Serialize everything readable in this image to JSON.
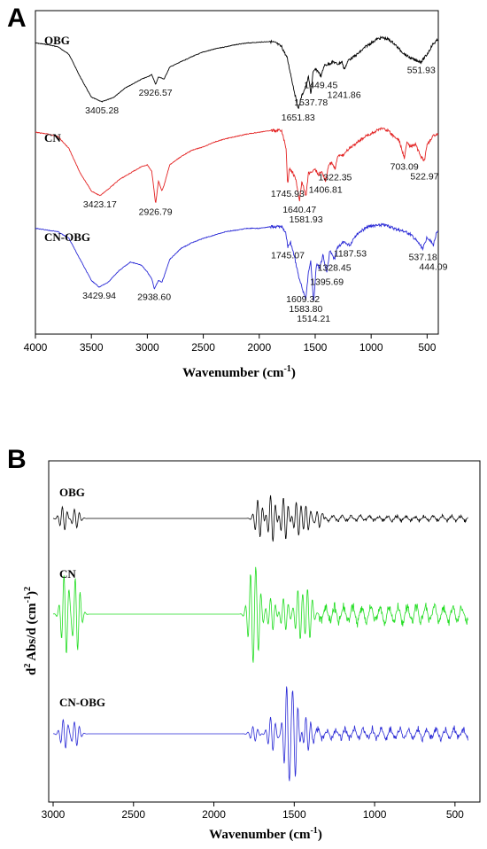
{
  "chart_data": [
    {
      "panel": "A",
      "type": "line",
      "xlabel": "Wavenumber (cm-1)",
      "xlabel_main": "Wavenumber (cm",
      "xlabel_sup": "-1",
      "xlabel_end": ")",
      "ylabel": "",
      "xlim": [
        4000,
        400
      ],
      "xticks": [
        4000,
        3500,
        3000,
        2500,
        2000,
        1500,
        1000,
        500
      ],
      "series": [
        {
          "name": "OBG",
          "color": "#000000",
          "points": [
            [
              4000,
              0.1
            ],
            [
              3900,
              0.12
            ],
            [
              3800,
              0.15
            ],
            [
              3700,
              0.25
            ],
            [
              3600,
              0.55
            ],
            [
              3500,
              0.82
            ],
            [
              3405,
              0.88
            ],
            [
              3300,
              0.82
            ],
            [
              3200,
              0.7
            ],
            [
              3100,
              0.62
            ],
            [
              3050,
              0.58
            ],
            [
              3000,
              0.55
            ],
            [
              2960,
              0.52
            ],
            [
              2926,
              0.65
            ],
            [
              2900,
              0.55
            ],
            [
              2850,
              0.58
            ],
            [
              2800,
              0.42
            ],
            [
              2700,
              0.35
            ],
            [
              2600,
              0.28
            ],
            [
              2500,
              0.22
            ],
            [
              2400,
              0.18
            ],
            [
              2300,
              0.15
            ],
            [
              2200,
              0.12
            ],
            [
              2100,
              0.1
            ],
            [
              2000,
              0.09
            ],
            [
              1900,
              0.08
            ],
            [
              1850,
              0.1
            ],
            [
              1800,
              0.15
            ],
            [
              1750,
              0.3
            ],
            [
              1700,
              0.65
            ],
            [
              1652,
              0.98
            ],
            [
              1620,
              0.8
            ],
            [
              1590,
              0.7
            ],
            [
              1560,
              0.55
            ],
            [
              1538,
              0.78
            ],
            [
              1520,
              0.5
            ],
            [
              1500,
              0.45
            ],
            [
              1470,
              0.48
            ],
            [
              1449,
              0.55
            ],
            [
              1420,
              0.4
            ],
            [
              1380,
              0.38
            ],
            [
              1340,
              0.35
            ],
            [
              1300,
              0.38
            ],
            [
              1260,
              0.35
            ],
            [
              1242,
              0.45
            ],
            [
              1200,
              0.32
            ],
            [
              1150,
              0.28
            ],
            [
              1100,
              0.22
            ],
            [
              1050,
              0.15
            ],
            [
              1000,
              0.1
            ],
            [
              950,
              0.05
            ],
            [
              900,
              0.03
            ],
            [
              850,
              0.05
            ],
            [
              800,
              0.1
            ],
            [
              750,
              0.18
            ],
            [
              700,
              0.25
            ],
            [
              650,
              0.3
            ],
            [
              600,
              0.33
            ],
            [
              552,
              0.35
            ],
            [
              500,
              0.25
            ],
            [
              450,
              0.12
            ],
            [
              400,
              0.05
            ]
          ],
          "peaks": [
            {
              "label": "3405.28",
              "x": 3405.28
            },
            {
              "label": "2926.57",
              "x": 2926.57
            },
            {
              "label": "1651.83",
              "x": 1651.83
            },
            {
              "label": "1537.78",
              "x": 1537.78
            },
            {
              "label": "1449.45",
              "x": 1449.45
            },
            {
              "label": "1241.86",
              "x": 1241.86
            },
            {
              "label": "551.93",
              "x": 551.93
            }
          ]
        },
        {
          "name": "CN",
          "color": "#e32222",
          "points": [
            [
              4000,
              0.1
            ],
            [
              3900,
              0.12
            ],
            [
              3800,
              0.15
            ],
            [
              3700,
              0.3
            ],
            [
              3600,
              0.6
            ],
            [
              3500,
              0.82
            ],
            [
              3423,
              0.88
            ],
            [
              3350,
              0.8
            ],
            [
              3250,
              0.68
            ],
            [
              3150,
              0.6
            ],
            [
              3050,
              0.52
            ],
            [
              3000,
              0.5
            ],
            [
              2960,
              0.58
            ],
            [
              2926,
              0.98
            ],
            [
              2900,
              0.7
            ],
            [
              2870,
              0.82
            ],
            [
              2850,
              0.75
            ],
            [
              2800,
              0.5
            ],
            [
              2700,
              0.4
            ],
            [
              2600,
              0.32
            ],
            [
              2500,
              0.28
            ],
            [
              2400,
              0.22
            ],
            [
              2300,
              0.18
            ],
            [
              2200,
              0.15
            ],
            [
              2100,
              0.12
            ],
            [
              2000,
              0.1
            ],
            [
              1900,
              0.08
            ],
            [
              1800,
              0.08
            ],
            [
              1760,
              0.3
            ],
            [
              1746,
              0.75
            ],
            [
              1730,
              0.55
            ],
            [
              1700,
              0.6
            ],
            [
              1670,
              0.7
            ],
            [
              1640,
              0.95
            ],
            [
              1620,
              0.7
            ],
            [
              1582,
              0.88
            ],
            [
              1560,
              0.6
            ],
            [
              1520,
              0.58
            ],
            [
              1500,
              0.55
            ],
            [
              1470,
              0.62
            ],
            [
              1440,
              0.58
            ],
            [
              1407,
              0.7
            ],
            [
              1380,
              0.5
            ],
            [
              1350,
              0.48
            ],
            [
              1322,
              0.55
            ],
            [
              1300,
              0.4
            ],
            [
              1250,
              0.38
            ],
            [
              1200,
              0.3
            ],
            [
              1150,
              0.25
            ],
            [
              1100,
              0.2
            ],
            [
              1050,
              0.15
            ],
            [
              1000,
              0.12
            ],
            [
              950,
              0.08
            ],
            [
              900,
              0.05
            ],
            [
              850,
              0.08
            ],
            [
              800,
              0.15
            ],
            [
              750,
              0.2
            ],
            [
              703,
              0.42
            ],
            [
              680,
              0.22
            ],
            [
              650,
              0.28
            ],
            [
              600,
              0.25
            ],
            [
              560,
              0.4
            ],
            [
              523,
              0.45
            ],
            [
              500,
              0.25
            ],
            [
              450,
              0.15
            ],
            [
              400,
              0.12
            ]
          ],
          "peaks": [
            {
              "label": "3423.17",
              "x": 3423.17
            },
            {
              "label": "2926.79",
              "x": 2926.79
            },
            {
              "label": "1745.93",
              "x": 1745.93
            },
            {
              "label": "1640.47",
              "x": 1640.47
            },
            {
              "label": "1581.93",
              "x": 1581.93
            },
            {
              "label": "1406.81",
              "x": 1406.81
            },
            {
              "label": "1322.35",
              "x": 1322.35
            },
            {
              "label": "703.09",
              "x": 703.09
            },
            {
              "label": "522.97",
              "x": 522.97
            }
          ]
        },
        {
          "name": "CN-OBG",
          "color": "#2a2ad6",
          "points": [
            [
              4000,
              0.08
            ],
            [
              3900,
              0.1
            ],
            [
              3800,
              0.12
            ],
            [
              3700,
              0.2
            ],
            [
              3600,
              0.45
            ],
            [
              3500,
              0.7
            ],
            [
              3430,
              0.78
            ],
            [
              3350,
              0.72
            ],
            [
              3250,
              0.58
            ],
            [
              3150,
              0.48
            ],
            [
              3050,
              0.52
            ],
            [
              3000,
              0.6
            ],
            [
              2960,
              0.68
            ],
            [
              2938,
              0.8
            ],
            [
              2900,
              0.7
            ],
            [
              2870,
              0.72
            ],
            [
              2850,
              0.65
            ],
            [
              2800,
              0.45
            ],
            [
              2700,
              0.32
            ],
            [
              2600,
              0.25
            ],
            [
              2500,
              0.2
            ],
            [
              2400,
              0.16
            ],
            [
              2300,
              0.12
            ],
            [
              2200,
              0.1
            ],
            [
              2100,
              0.08
            ],
            [
              2000,
              0.08
            ],
            [
              1900,
              0.06
            ],
            [
              1800,
              0.06
            ],
            [
              1760,
              0.15
            ],
            [
              1745,
              0.3
            ],
            [
              1720,
              0.25
            ],
            [
              1680,
              0.45
            ],
            [
              1640,
              0.7
            ],
            [
              1609,
              0.82
            ],
            [
              1584,
              0.92
            ],
            [
              1560,
              0.6
            ],
            [
              1540,
              0.45
            ],
            [
              1514,
              0.98
            ],
            [
              1490,
              0.5
            ],
            [
              1460,
              0.55
            ],
            [
              1430,
              0.4
            ],
            [
              1396,
              0.62
            ],
            [
              1370,
              0.35
            ],
            [
              1328,
              0.45
            ],
            [
              1300,
              0.3
            ],
            [
              1250,
              0.25
            ],
            [
              1188,
              0.28
            ],
            [
              1150,
              0.18
            ],
            [
              1100,
              0.12
            ],
            [
              1050,
              0.08
            ],
            [
              1000,
              0.05
            ],
            [
              950,
              0.05
            ],
            [
              900,
              0.04
            ],
            [
              850,
              0.05
            ],
            [
              800,
              0.08
            ],
            [
              750,
              0.1
            ],
            [
              700,
              0.12
            ],
            [
              650,
              0.15
            ],
            [
              600,
              0.22
            ],
            [
              537,
              0.32
            ],
            [
              500,
              0.18
            ],
            [
              444,
              0.28
            ],
            [
              420,
              0.15
            ],
            [
              400,
              0.12
            ]
          ],
          "peaks": [
            {
              "label": "3429.94",
              "x": 3429.94
            },
            {
              "label": "2938.60",
              "x": 2938.6
            },
            {
              "label": "1745.07",
              "x": 1745.07
            },
            {
              "label": "1609.32",
              "x": 1609.32
            },
            {
              "label": "1583.80",
              "x": 1583.8
            },
            {
              "label": "1514.21",
              "x": 1514.21
            },
            {
              "label": "1395.69",
              "x": 1395.69
            },
            {
              "label": "1328.45",
              "x": 1328.45
            },
            {
              "label": "1187.53",
              "x": 1187.53
            },
            {
              "label": "537.18",
              "x": 537.18
            },
            {
              "label": "444.09",
              "x": 444.09
            }
          ]
        }
      ]
    },
    {
      "panel": "B",
      "type": "line",
      "xlabel": "Wavenumber (cm-1)",
      "xlabel_main": "Wavenumber (cm",
      "xlabel_sup": "-1",
      "xlabel_end": ")",
      "ylabel": "d2 Abs/d (cm-1)2",
      "ylabel_parts": {
        "a": "d",
        "b": "2",
        "c": " Abs/d (cm",
        "d": "-1",
        "e": ")",
        "f": "2"
      },
      "xlim": [
        3000,
        400
      ],
      "xticks": [
        3000,
        2500,
        2000,
        1500,
        1000,
        500
      ],
      "series": [
        {
          "name": "OBG",
          "color": "#000000",
          "bursts": [
            {
              "x": 2935,
              "amp": 0.5
            },
            {
              "x": 2860,
              "amp": 0.4
            },
            {
              "x": 1720,
              "amp": 0.8
            },
            {
              "x": 1640,
              "amp": 1.0
            },
            {
              "x": 1560,
              "amp": 0.9
            },
            {
              "x": 1480,
              "amp": 0.7
            },
            {
              "x": 1420,
              "amp": 0.5
            },
            {
              "x": 1350,
              "amp": 0.3
            }
          ],
          "noise_from": 1350,
          "noise_amp": 0.15
        },
        {
          "name": "CN",
          "color": "#22dd22",
          "bursts": [
            {
              "x": 2925,
              "amp": 1.0
            },
            {
              "x": 2855,
              "amp": 0.9
            },
            {
              "x": 1765,
              "amp": 0.9
            },
            {
              "x": 1730,
              "amp": 0.8
            },
            {
              "x": 1640,
              "amp": 0.4
            },
            {
              "x": 1560,
              "amp": 0.4
            },
            {
              "x": 1470,
              "amp": 0.6
            },
            {
              "x": 1410,
              "amp": 0.6
            }
          ],
          "noise_from": 1350,
          "noise_amp": 0.3
        },
        {
          "name": "CN-OBG",
          "color": "#2a2ad6",
          "bursts": [
            {
              "x": 2930,
              "amp": 0.3
            },
            {
              "x": 2860,
              "amp": 0.25
            },
            {
              "x": 1750,
              "amp": 0.15
            },
            {
              "x": 1640,
              "amp": 0.35
            },
            {
              "x": 1540,
              "amp": 1.0
            },
            {
              "x": 1500,
              "amp": 0.9
            },
            {
              "x": 1420,
              "amp": 0.35
            }
          ],
          "noise_from": 1400,
          "noise_amp": 0.15
        }
      ]
    }
  ]
}
